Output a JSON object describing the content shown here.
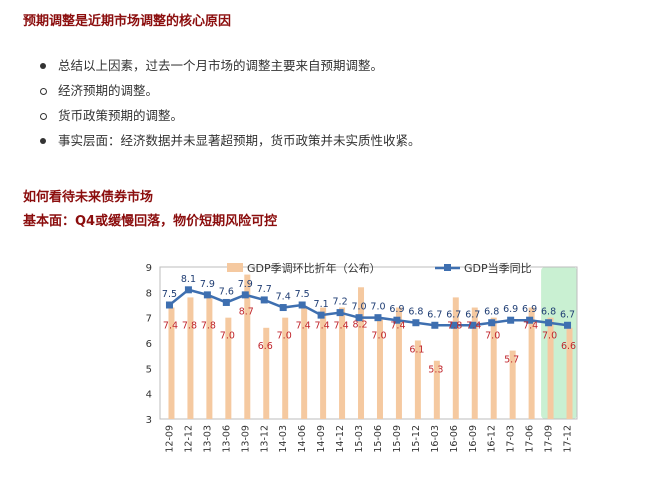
{
  "section1": {
    "heading": "预期调整是近期市场调整的核心原因"
  },
  "bullets": [
    {
      "text": "总结以上因素，过去一个月市场的调整主要来自预期调整。",
      "style": "solid"
    },
    {
      "text": "经济预期的调整。",
      "style": "hollow"
    },
    {
      "text": "货币政策预期的调整。",
      "style": "hollow"
    },
    {
      "text": "事实层面：经济数据并未显著超预期，货币政策并未实质性收紧。",
      "style": "solid"
    }
  ],
  "section2": {
    "heading": "如何看待未来债券市场",
    "subheading": "基本面：Q4或缓慢回落，物价短期风险可控"
  },
  "colors": {
    "heading": "#8b0d0d",
    "bar": "#f5c9a0",
    "line": "#3e6fb0",
    "bar_label": "#c0262d",
    "line_label": "#1f3d73",
    "highlight": "#c9f0d2"
  },
  "chart_data": {
    "type": "bar+line",
    "categories": [
      "12-09",
      "12-12",
      "13-03",
      "13-06",
      "13-09",
      "13-12",
      "14-03",
      "14-06",
      "14-09",
      "14-12",
      "15-03",
      "15-06",
      "15-09",
      "15-12",
      "16-03",
      "16-06",
      "16-09",
      "16-12",
      "17-03",
      "17-06",
      "17-09",
      "17-12"
    ],
    "ylim": [
      3,
      9
    ],
    "yticks": [
      "3",
      "4",
      "5",
      "6",
      "7",
      "8",
      "9"
    ],
    "series": [
      {
        "name": "GDP季调环比折年（公布）",
        "kind": "bar",
        "values": [
          7.4,
          7.8,
          7.8,
          7.0,
          8.7,
          6.6,
          7.0,
          7.4,
          7.4,
          7.4,
          8.2,
          7.0,
          7.4,
          6.1,
          5.3,
          7.8,
          7.4,
          7.0,
          5.7,
          7.4,
          7.0,
          6.6
        ],
        "labels": [
          "7.4",
          "7.8",
          "7.8",
          "7.0",
          "8.7",
          "6.6",
          "7.0",
          "7.4",
          "7.4",
          "7.4",
          "8.2",
          "7.0",
          "7.4",
          "6.1",
          "5.3",
          "7.8",
          "7.4",
          "7.0",
          "5.7",
          "7.4",
          "7.0",
          "6.6"
        ]
      },
      {
        "name": "GDP当季同比",
        "kind": "line",
        "values": [
          7.5,
          8.1,
          7.9,
          7.6,
          7.9,
          7.7,
          7.4,
          7.5,
          7.1,
          7.2,
          7.0,
          7.0,
          6.9,
          6.8,
          6.7,
          6.7,
          6.7,
          6.8,
          6.9,
          6.9,
          6.8,
          6.7
        ],
        "labels": [
          "7.5",
          "8.1",
          "7.9",
          "7.6",
          "7.9",
          "7.7",
          "7.4",
          "7.5",
          "7.1",
          "7.2",
          "7.0",
          "7.0",
          "6.9",
          "6.8",
          "6.7",
          "6.7",
          "6.7",
          "6.8",
          "6.9",
          "6.9",
          "6.8",
          "6.7"
        ]
      }
    ],
    "legend_position": "top",
    "highlight_categories": [
      "17-09",
      "17-12"
    ]
  }
}
